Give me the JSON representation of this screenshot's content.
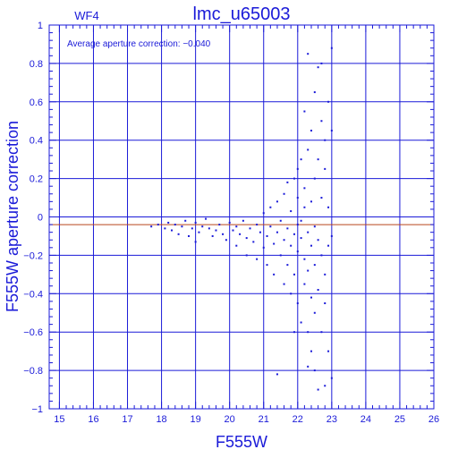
{
  "header": {
    "chip": "WF4",
    "title": "lmc_u65003"
  },
  "annotation": "Average aperture correction: −0.040",
  "chart_data": {
    "type": "scatter",
    "title": "lmc_u65003",
    "xlabel": "F555W",
    "ylabel": "F555W aperture correction",
    "xlim": [
      14.7,
      26.0
    ],
    "ylim": [
      -1.0,
      1.0
    ],
    "x_ticks": [
      15,
      16,
      17,
      18,
      19,
      20,
      21,
      22,
      23,
      24,
      25,
      26
    ],
    "y_ticks": [
      -1,
      -0.8,
      -0.6,
      -0.4,
      -0.2,
      0,
      0.2,
      0.4,
      0.6,
      0.8,
      1
    ],
    "y_tick_labels": [
      "−1",
      "−0.8",
      "−0.6",
      "−0.4",
      "−0.2",
      "0",
      "0.2",
      "0.4",
      "0.6",
      "0.8",
      "1"
    ],
    "grid": true,
    "reference_lines": [
      {
        "y": 0,
        "color": "#1a1ad8"
      },
      {
        "y": -0.04,
        "color": "#b8461e"
      }
    ],
    "series": [
      {
        "color": "#1a1ad8",
        "points": [
          [
            17.7,
            -0.05
          ],
          [
            17.9,
            -0.04
          ],
          [
            18.1,
            -0.06
          ],
          [
            18.2,
            -0.03
          ],
          [
            18.3,
            -0.07
          ],
          [
            18.4,
            -0.04
          ],
          [
            18.5,
            -0.09
          ],
          [
            18.6,
            -0.05
          ],
          [
            18.7,
            -0.02
          ],
          [
            18.8,
            -0.1
          ],
          [
            18.9,
            -0.06
          ],
          [
            19.0,
            -0.13
          ],
          [
            19.0,
            -0.03
          ],
          [
            19.1,
            -0.08
          ],
          [
            19.2,
            -0.05
          ],
          [
            19.3,
            -0.01
          ],
          [
            19.4,
            -0.06
          ],
          [
            19.5,
            -0.1
          ],
          [
            19.6,
            -0.07
          ],
          [
            19.7,
            -0.04
          ],
          [
            19.8,
            -0.09
          ],
          [
            19.9,
            -0.12
          ],
          [
            20.0,
            -0.03
          ],
          [
            20.1,
            -0.07
          ],
          [
            20.2,
            -0.15
          ],
          [
            20.2,
            -0.05
          ],
          [
            20.3,
            -0.09
          ],
          [
            20.4,
            -0.02
          ],
          [
            20.5,
            -0.11
          ],
          [
            20.5,
            -0.2
          ],
          [
            20.6,
            -0.06
          ],
          [
            20.7,
            -0.13
          ],
          [
            20.8,
            -0.04
          ],
          [
            20.8,
            -0.22
          ],
          [
            20.9,
            -0.08
          ],
          [
            21.0,
            -0.16
          ],
          [
            21.0,
            0.02
          ],
          [
            21.1,
            -0.1
          ],
          [
            21.1,
            -0.25
          ],
          [
            21.2,
            -0.05
          ],
          [
            21.2,
            0.05
          ],
          [
            21.3,
            -0.14
          ],
          [
            21.3,
            -0.3
          ],
          [
            21.4,
            -0.08
          ],
          [
            21.4,
            0.08
          ],
          [
            21.5,
            -0.2
          ],
          [
            21.5,
            -0.02
          ],
          [
            21.6,
            -0.12
          ],
          [
            21.6,
            -0.35
          ],
          [
            21.6,
            0.12
          ],
          [
            21.7,
            -0.06
          ],
          [
            21.7,
            -0.25
          ],
          [
            21.7,
            0.18
          ],
          [
            21.8,
            -0.15
          ],
          [
            21.8,
            0.03
          ],
          [
            21.8,
            -0.4
          ],
          [
            21.9,
            -0.09
          ],
          [
            21.9,
            0.2
          ],
          [
            21.9,
            -0.3
          ],
          [
            22.0,
            -0.04
          ],
          [
            22.0,
            -0.18
          ],
          [
            22.0,
            0.1
          ],
          [
            22.0,
            -0.45
          ],
          [
            22.0,
            0.25
          ],
          [
            22.1,
            -0.11
          ],
          [
            22.1,
            -0.55
          ],
          [
            22.1,
            0.3
          ],
          [
            22.1,
            -0.02
          ],
          [
            22.2,
            -0.22
          ],
          [
            22.2,
            0.05
          ],
          [
            22.2,
            -0.35
          ],
          [
            22.2,
            0.15
          ],
          [
            22.2,
            0.55
          ],
          [
            22.3,
            -0.08
          ],
          [
            22.3,
            -0.6
          ],
          [
            22.3,
            0.35
          ],
          [
            22.3,
            -0.28
          ],
          [
            22.3,
            0.85
          ],
          [
            22.4,
            -0.15
          ],
          [
            22.4,
            0.08
          ],
          [
            22.4,
            -0.42
          ],
          [
            22.4,
            0.45
          ],
          [
            22.4,
            -0.7
          ],
          [
            22.5,
            -0.05
          ],
          [
            22.5,
            -0.25
          ],
          [
            22.5,
            0.2
          ],
          [
            22.5,
            -0.5
          ],
          [
            22.5,
            0.65
          ],
          [
            22.5,
            -0.8
          ],
          [
            22.6,
            -0.12
          ],
          [
            22.6,
            0.3
          ],
          [
            22.6,
            -0.38
          ],
          [
            22.6,
            0.78
          ],
          [
            22.6,
            -0.9
          ],
          [
            22.7,
            -0.2
          ],
          [
            22.7,
            0.1
          ],
          [
            22.7,
            -0.6
          ],
          [
            22.7,
            0.5
          ],
          [
            22.7,
            0.8
          ],
          [
            22.8,
            -0.3
          ],
          [
            22.8,
            0.25
          ],
          [
            22.8,
            -0.45
          ],
          [
            22.8,
            0.4
          ],
          [
            22.9,
            -0.15
          ],
          [
            22.9,
            0.6
          ],
          [
            22.9,
            -0.7
          ],
          [
            22.9,
            0.05
          ],
          [
            23.0,
            -0.1
          ],
          [
            23.0,
            0.88
          ],
          [
            23.0,
            -0.84
          ],
          [
            23.0,
            0.45
          ],
          [
            21.4,
            -0.82
          ],
          [
            22.3,
            -0.78
          ],
          [
            22.8,
            -0.88
          ],
          [
            21.9,
            -0.6
          ]
        ]
      }
    ]
  }
}
